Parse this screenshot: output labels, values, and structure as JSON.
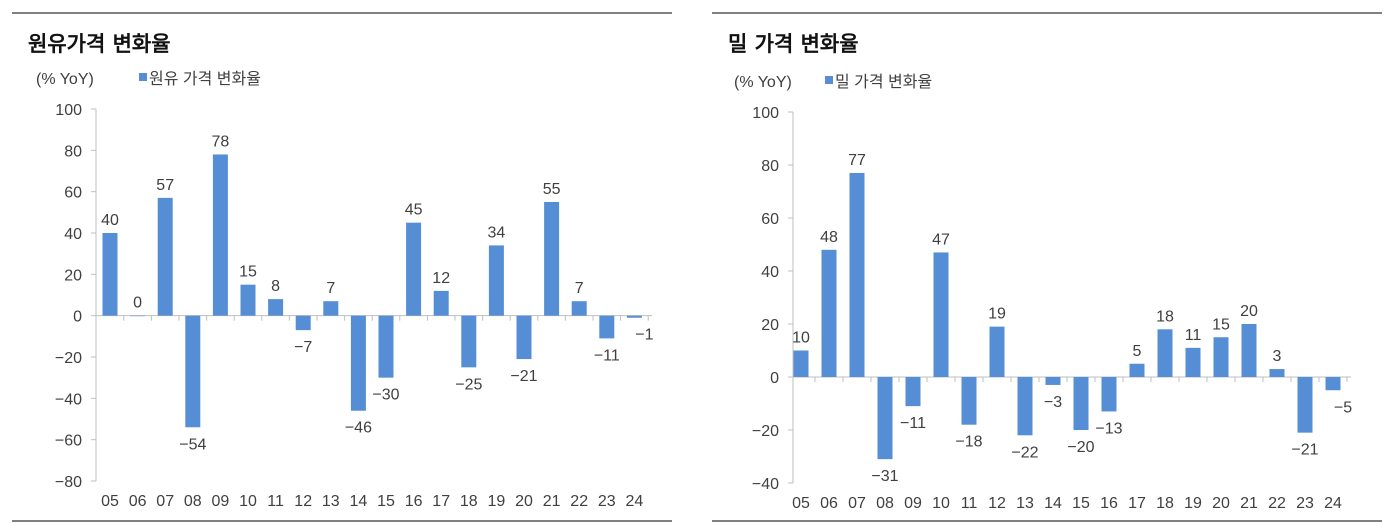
{
  "chart_data": [
    {
      "type": "bar",
      "title": "원유가격 변화율",
      "unit_label": "(% YoY)",
      "series": [
        {
          "name": "원유 가격 변화율",
          "values": [
            40,
            0,
            57,
            -54,
            78,
            15,
            8,
            -7,
            7,
            -46,
            -30,
            45,
            12,
            -25,
            34,
            -21,
            55,
            7,
            -11,
            -1
          ]
        }
      ],
      "categories": [
        "05",
        "06",
        "07",
        "08",
        "09",
        "10",
        "11",
        "12",
        "13",
        "14",
        "15",
        "16",
        "17",
        "18",
        "19",
        "20",
        "21",
        "22",
        "23",
        "24"
      ],
      "ylim": [
        -80,
        100
      ],
      "yticks": [
        100,
        80,
        60,
        40,
        20,
        0,
        -20,
        -40,
        -60,
        -80
      ],
      "grid": false,
      "legend": "top-left",
      "color": "#558ed5"
    },
    {
      "type": "bar",
      "title": "밀 가격 변화율",
      "unit_label": "(% YoY)",
      "series": [
        {
          "name": "밀 가격 변화율",
          "values": [
            10,
            48,
            77,
            -31,
            -11,
            47,
            -18,
            19,
            -22,
            -3,
            -20,
            -13,
            5,
            18,
            11,
            15,
            20,
            3,
            -21,
            -5
          ]
        }
      ],
      "categories": [
        "05",
        "06",
        "07",
        "08",
        "09",
        "10",
        "11",
        "12",
        "13",
        "14",
        "15",
        "16",
        "17",
        "18",
        "19",
        "20",
        "21",
        "22",
        "23",
        "24"
      ],
      "ylim": [
        -40,
        100
      ],
      "yticks": [
        100,
        80,
        60,
        40,
        20,
        0,
        -20,
        -40
      ],
      "grid": false,
      "legend": "top-left",
      "color": "#558ed5"
    }
  ]
}
